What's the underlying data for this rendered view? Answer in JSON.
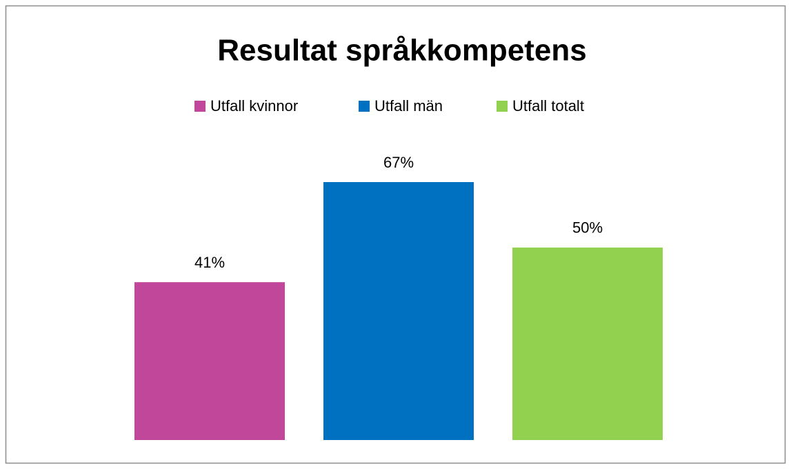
{
  "chart_data": {
    "type": "bar",
    "title": "Resultat språkkompetens",
    "series": [
      {
        "name": "Utfall kvinnor",
        "color": "#c0479a",
        "values": [
          41
        ],
        "value_labels": [
          "41%"
        ]
      },
      {
        "name": "Utfall män",
        "color": "#0070c0",
        "values": [
          67
        ],
        "value_labels": [
          "67%"
        ]
      },
      {
        "name": "Utfall totalt",
        "color": "#92d050",
        "values": [
          50
        ],
        "value_labels": [
          "50%"
        ]
      }
    ],
    "legend": "top"
  }
}
